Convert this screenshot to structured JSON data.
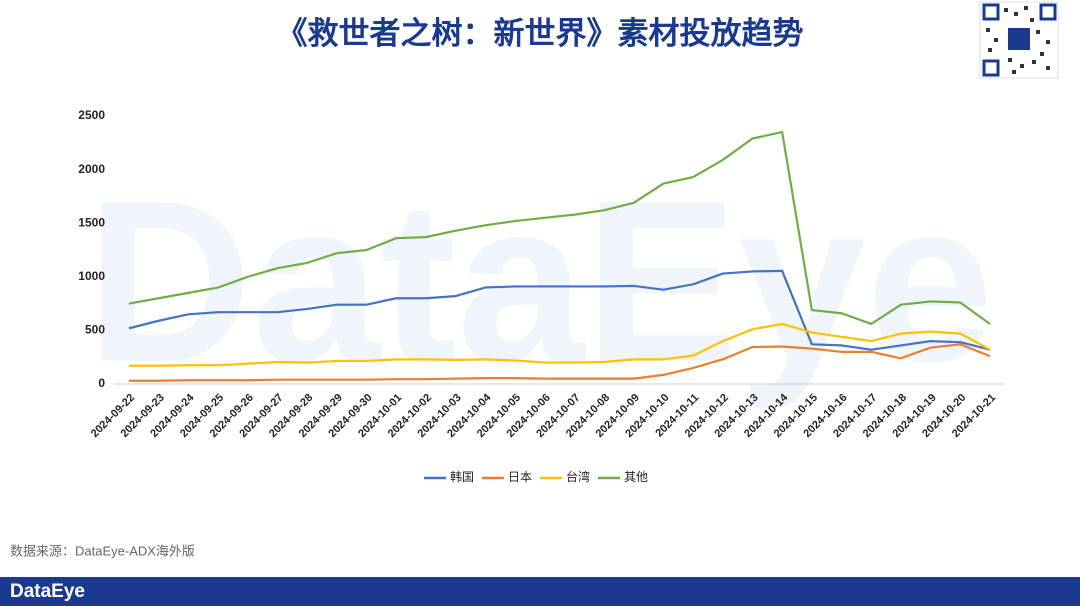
{
  "title": "《救世者之树：新世界》素材投放趋势",
  "watermark": "DataEye",
  "source": "数据来源：DataEye-ADX海外版",
  "footer_logo": "DataEye",
  "chart_data": {
    "type": "line",
    "categories": [
      "2024-09-22",
      "2024-09-23",
      "2024-09-24",
      "2024-09-25",
      "2024-09-26",
      "2024-09-27",
      "2024-09-28",
      "2024-09-29",
      "2024-09-30",
      "2024-10-01",
      "2024-10-02",
      "2024-10-03",
      "2024-10-04",
      "2024-10-05",
      "2024-10-06",
      "2024-10-07",
      "2024-10-08",
      "2024-10-09",
      "2024-10-10",
      "2024-10-11",
      "2024-10-12",
      "2024-10-13",
      "2024-10-14",
      "2024-10-15",
      "2024-10-16",
      "2024-10-17",
      "2024-10-18",
      "2024-10-19",
      "2024-10-20",
      "2024-10-21"
    ],
    "series": [
      {
        "name": "韩国",
        "color": "#4472c4",
        "values": [
          520,
          590,
          650,
          670,
          670,
          670,
          700,
          740,
          740,
          800,
          800,
          820,
          900,
          910,
          910,
          910,
          910,
          915,
          880,
          930,
          1030,
          1050,
          1055,
          370,
          360,
          320,
          360,
          400,
          390,
          320
        ]
      },
      {
        "name": "日本",
        "color": "#ed7d31",
        "values": [
          30,
          30,
          35,
          35,
          35,
          40,
          40,
          40,
          40,
          45,
          45,
          50,
          55,
          55,
          50,
          50,
          50,
          50,
          85,
          150,
          230,
          345,
          350,
          330,
          300,
          300,
          240,
          340,
          370,
          260
        ]
      },
      {
        "name": "台湾",
        "color": "#ffc000",
        "values": [
          170,
          170,
          175,
          175,
          190,
          205,
          200,
          215,
          215,
          230,
          230,
          225,
          230,
          220,
          200,
          200,
          205,
          230,
          230,
          265,
          400,
          510,
          560,
          480,
          440,
          400,
          470,
          490,
          470,
          320
        ]
      },
      {
        "name": "其他",
        "color": "#70ad47",
        "values": [
          750,
          800,
          850,
          900,
          1000,
          1080,
          1130,
          1220,
          1250,
          1360,
          1370,
          1430,
          1480,
          1520,
          1550,
          1580,
          1620,
          1690,
          1870,
          1930,
          2090,
          2290,
          2350,
          690,
          660,
          560,
          740,
          770,
          760,
          560
        ]
      }
    ],
    "ylim": [
      0,
      2500
    ],
    "yticks": [
      0,
      500,
      1000,
      1500,
      2000,
      2500
    ],
    "grid": false,
    "legend": "bottom"
  }
}
